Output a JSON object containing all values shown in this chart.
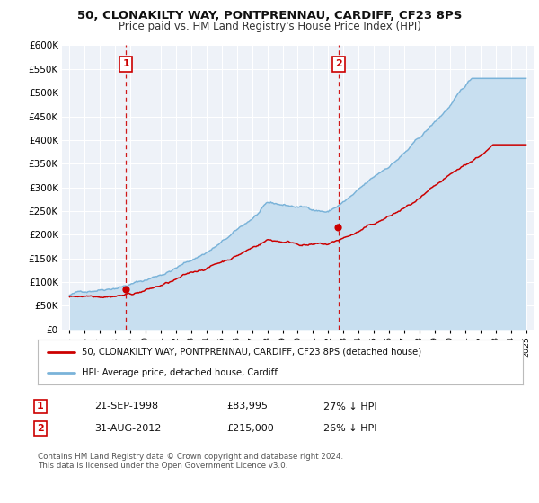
{
  "title1": "50, CLONAKILTY WAY, PONTPRENNAU, CARDIFF, CF23 8PS",
  "title2": "Price paid vs. HM Land Registry's House Price Index (HPI)",
  "ylim": [
    0,
    600000
  ],
  "yticks": [
    0,
    50000,
    100000,
    150000,
    200000,
    250000,
    300000,
    350000,
    400000,
    450000,
    500000,
    550000,
    600000
  ],
  "xlim_start": 1994.5,
  "xlim_end": 2025.5,
  "property_color": "#cc0000",
  "hpi_color": "#7ab3d9",
  "hpi_fill_color": "#c8dff0",
  "marker1_date": 1998.72,
  "marker1_value": 83995,
  "marker2_date": 2012.66,
  "marker2_value": 215000,
  "vline1_x": 1998.72,
  "vline2_x": 2012.66,
  "legend_label1": "50, CLONAKILTY WAY, PONTPRENNAU, CARDIFF, CF23 8PS (detached house)",
  "legend_label2": "HPI: Average price, detached house, Cardiff",
  "table_row1_num": "1",
  "table_row1_date": "21-SEP-1998",
  "table_row1_price": "£83,995",
  "table_row1_hpi": "27% ↓ HPI",
  "table_row2_num": "2",
  "table_row2_date": "31-AUG-2012",
  "table_row2_price": "£215,000",
  "table_row2_hpi": "26% ↓ HPI",
  "footnote1": "Contains HM Land Registry data © Crown copyright and database right 2024.",
  "footnote2": "This data is licensed under the Open Government Licence v3.0.",
  "background_color": "#eef2f8",
  "grid_color": "#ffffff",
  "title1_fontsize": 9.5,
  "title2_fontsize": 8.5
}
